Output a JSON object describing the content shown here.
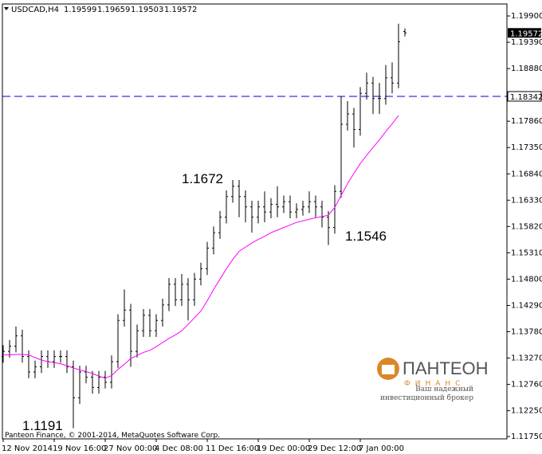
{
  "chart_data": {
    "type": "ohlc",
    "symbol": "USDCAD,H4",
    "footer": "Panteon Finance, © 2001-2014, MetaQuotes Software Corp.",
    "brand": {
      "name": "ПАНТЕОН",
      "sub": "ФИНАНС",
      "slogan1": "Ваш надежный",
      "slogan2": "инвестиционный брокер"
    },
    "annotations": [
      "1.1672",
      "1.1546",
      "1.1191"
    ],
    "categories": [
      "12 Nov 2014",
      null,
      null,
      null,
      null,
      null,
      null,
      null,
      "19 Nov 16:00",
      null,
      null,
      null,
      null,
      null,
      null,
      null,
      "27 Nov 00:00",
      null,
      null,
      null,
      null,
      null,
      null,
      null,
      "4 Dec 08:00",
      null,
      null,
      null,
      null,
      null,
      null,
      null,
      "11 Dec 16:00",
      null,
      null,
      null,
      null,
      null,
      null,
      null,
      "19 Dec 00:00",
      null,
      null,
      null,
      null,
      null,
      null,
      null,
      "29 Dec 12:00",
      null,
      null,
      null,
      null,
      null,
      null,
      null,
      "7 Jan 00:00",
      null,
      null,
      null,
      null,
      null,
      null,
      null
    ],
    "open": [
      1.133,
      1.134,
      1.135,
      1.137,
      1.133,
      1.13,
      1.131,
      1.133,
      1.132,
      1.133,
      1.133,
      1.131,
      1.125,
      1.13,
      1.129,
      1.127,
      1.129,
      1.128,
      1.132,
      1.14,
      1.142,
      1.134,
      1.138,
      1.141,
      1.138,
      1.14,
      1.143,
      1.147,
      1.144,
      1.147,
      1.144,
      1.148,
      1.15,
      1.154,
      1.157,
      1.16,
      1.164,
      1.166,
      1.164,
      1.162,
      1.16,
      1.162,
      1.161,
      1.1625,
      1.162,
      1.163,
      1.161,
      1.1615,
      1.162,
      1.163,
      1.162,
      1.16,
      1.158,
      1.165,
      1.178,
      1.18,
      1.177,
      1.184,
      1.186,
      1.183,
      1.183,
      1.187,
      1.186,
      1.19599
    ],
    "high": [
      1.1352,
      1.1362,
      1.1388,
      1.1382,
      1.1342,
      1.1322,
      1.1342,
      1.1342,
      1.1342,
      1.1342,
      1.1342,
      1.1322,
      1.1312,
      1.1312,
      1.1302,
      1.1302,
      1.1302,
      1.1332,
      1.1412,
      1.146,
      1.1432,
      1.1392,
      1.1422,
      1.1422,
      1.1412,
      1.1442,
      1.1482,
      1.1482,
      1.149,
      1.1482,
      1.1492,
      1.1512,
      1.1552,
      1.1582,
      1.1612,
      1.1652,
      1.1672,
      1.1672,
      1.1652,
      1.1632,
      1.1632,
      1.165,
      1.1637,
      1.166,
      1.1642,
      1.1642,
      1.1627,
      1.1632,
      1.165,
      1.1642,
      1.1632,
      1.1612,
      1.1662,
      1.1835,
      1.1825,
      1.1812,
      1.1852,
      1.188,
      1.1872,
      1.186,
      1.1895,
      1.19,
      1.1975,
      1.19659
    ],
    "low": [
      1.1318,
      1.1328,
      1.1338,
      1.1318,
      1.1288,
      1.1288,
      1.1298,
      1.1308,
      1.1308,
      1.1318,
      1.1298,
      1.1191,
      1.1238,
      1.1278,
      1.1258,
      1.1258,
      1.1268,
      1.1268,
      1.1308,
      1.1388,
      1.131,
      1.1328,
      1.1368,
      1.1368,
      1.1368,
      1.1388,
      1.1418,
      1.1428,
      1.1428,
      1.14,
      1.1428,
      1.1468,
      1.1488,
      1.1528,
      1.1558,
      1.1588,
      1.1628,
      1.16,
      1.159,
      1.157,
      1.1588,
      1.159,
      1.1598,
      1.16,
      1.1608,
      1.1598,
      1.1598,
      1.1603,
      1.1608,
      1.16,
      1.158,
      1.1546,
      1.1568,
      1.1638,
      1.1768,
      1.1735,
      1.1758,
      1.1828,
      1.18,
      1.18,
      1.1818,
      1.184,
      1.185,
      1.19503
    ],
    "close": [
      1.134,
      1.135,
      1.137,
      1.133,
      1.13,
      1.131,
      1.133,
      1.132,
      1.133,
      1.133,
      1.131,
      1.125,
      1.13,
      1.129,
      1.127,
      1.129,
      1.128,
      1.132,
      1.14,
      1.142,
      1.134,
      1.138,
      1.141,
      1.138,
      1.14,
      1.143,
      1.147,
      1.144,
      1.147,
      1.144,
      1.148,
      1.15,
      1.154,
      1.157,
      1.16,
      1.164,
      1.166,
      1.164,
      1.162,
      1.16,
      1.162,
      1.161,
      1.1625,
      1.162,
      1.163,
      1.161,
      1.1615,
      1.162,
      1.163,
      1.162,
      1.16,
      1.158,
      1.165,
      1.178,
      1.18,
      1.177,
      1.184,
      1.186,
      1.183,
      1.183,
      1.187,
      1.186,
      1.194,
      1.19572
    ],
    "color": "#000000",
    "ma": {
      "color": "#ff00ff",
      "values": [
        1.1333,
        1.1333,
        1.1334,
        1.1334,
        1.1333,
        1.1328,
        1.1323,
        1.132,
        1.1318,
        1.1316,
        1.1312,
        1.1308,
        1.1304,
        1.1301,
        1.1297,
        1.1292,
        1.1288,
        1.1293,
        1.1305,
        1.1315,
        1.1326,
        1.1332,
        1.1338,
        1.1342,
        1.1349,
        1.1357,
        1.1365,
        1.1372,
        1.138,
        1.1392,
        1.1405,
        1.1418,
        1.1438,
        1.146,
        1.148,
        1.15,
        1.1518,
        1.1534,
        1.1542,
        1.155,
        1.1557,
        1.1563,
        1.157,
        1.1575,
        1.158,
        1.1585,
        1.159,
        1.1593,
        1.1596,
        1.1599,
        1.1601,
        1.1604,
        1.1619,
        1.1642,
        1.1665,
        1.1685,
        1.1704,
        1.172,
        1.1735,
        1.175,
        1.1766,
        1.1781,
        1.1797,
        null
      ]
    },
    "hline": {
      "value": 1.18342,
      "color": "#0000cc"
    },
    "ylim": [
      1.11704,
      1.20132
    ],
    "yticks": [
      {
        "value": 1.199,
        "label": "1.19900"
      },
      {
        "value": 1.1939,
        "label": "1.19390"
      },
      {
        "value": 1.1888,
        "label": "1.18880"
      },
      {
        "value": 1.1786,
        "label": "1.17860"
      },
      {
        "value": 1.1735,
        "label": "1.17350"
      },
      {
        "value": 1.1684,
        "label": "1.16840"
      },
      {
        "value": 1.1633,
        "label": "1.16330"
      },
      {
        "value": 1.1582,
        "label": "1.15820"
      },
      {
        "value": 1.1531,
        "label": "1.15310"
      },
      {
        "value": 1.148,
        "label": "1.14800"
      },
      {
        "value": 1.1429,
        "label": "1.14290"
      },
      {
        "value": 1.1378,
        "label": "1.13780"
      },
      {
        "value": 1.1327,
        "label": "1.13270"
      },
      {
        "value": 1.1276,
        "label": "1.12760"
      },
      {
        "value": 1.1225,
        "label": "1.12250"
      },
      {
        "value": 1.1175,
        "label": "1.11750"
      }
    ]
  }
}
